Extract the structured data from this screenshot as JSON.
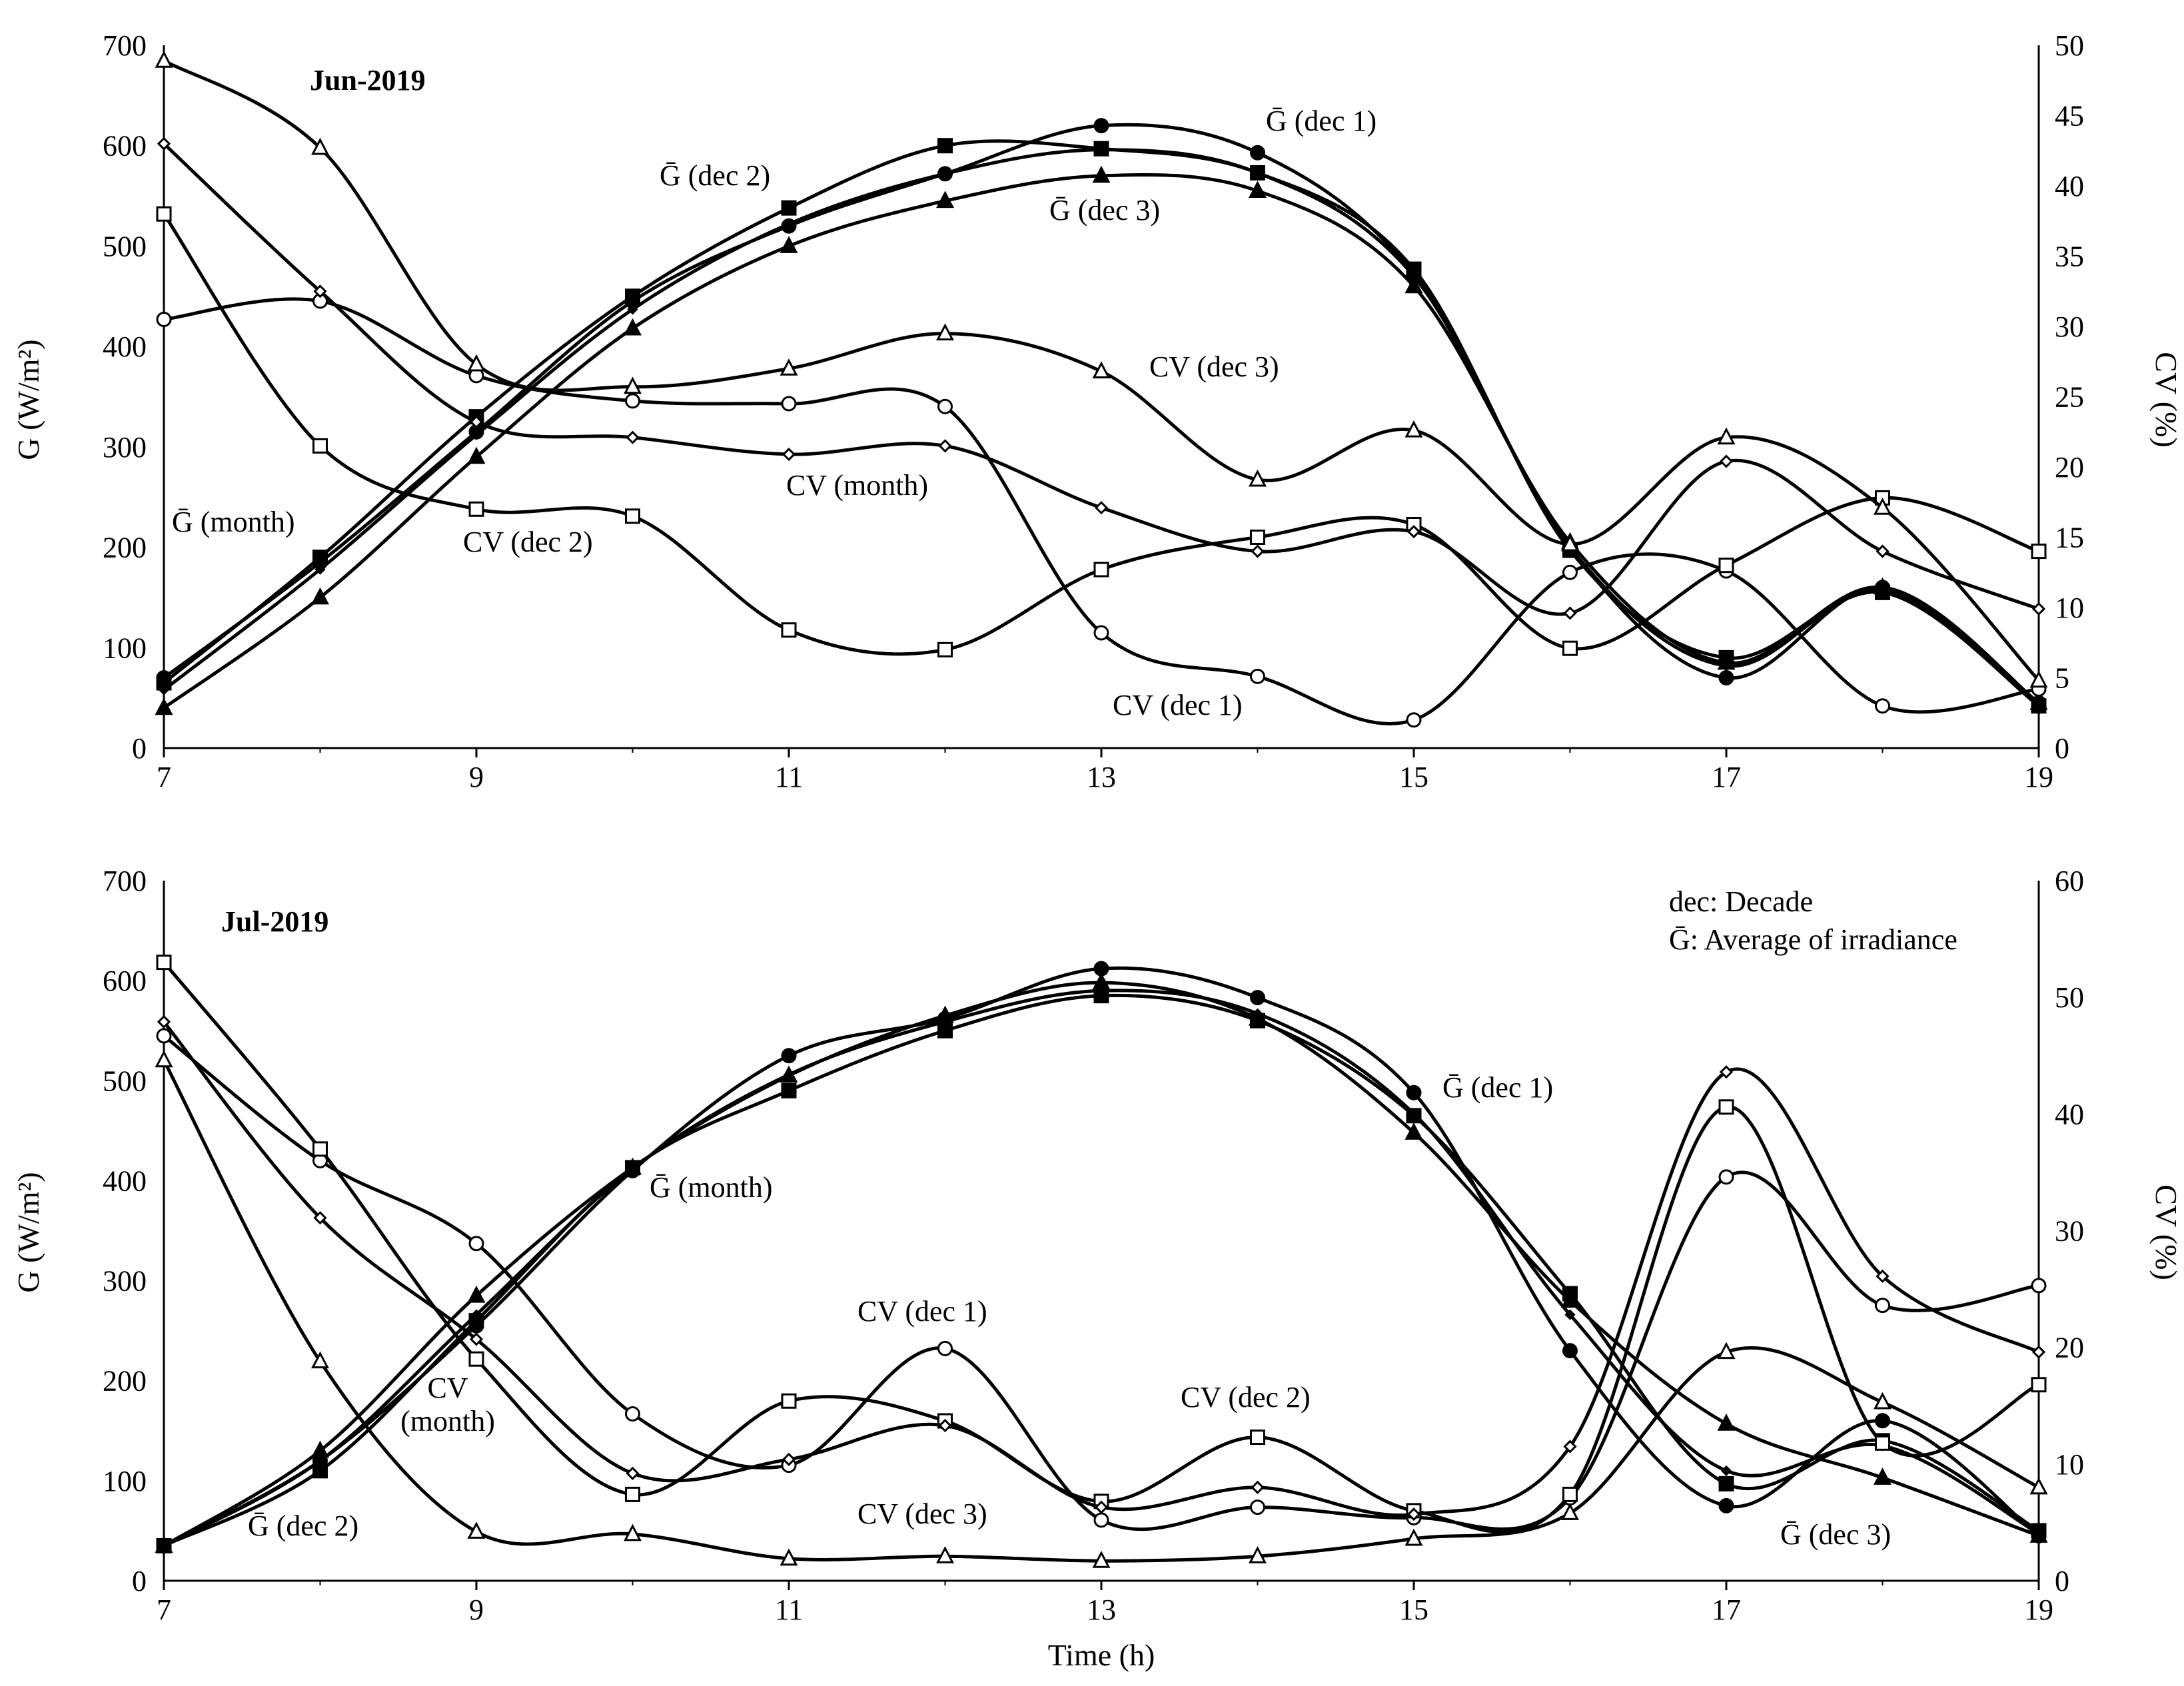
{
  "chart_data": [
    {
      "type": "line",
      "title": "Jun-2019",
      "xlabel": "",
      "ylabel": "G (W/m²)",
      "y2label": "CV (%)",
      "x": [
        7,
        8,
        9,
        10,
        11,
        12,
        13,
        14,
        15,
        16,
        17,
        18,
        19
      ],
      "xticks": [
        7,
        9,
        11,
        13,
        15,
        17,
        19
      ],
      "xlim": [
        7,
        19
      ],
      "ylim": [
        0,
        700
      ],
      "yticks": [
        0,
        100,
        200,
        300,
        400,
        500,
        600,
        700
      ],
      "y2lim": [
        0,
        50
      ],
      "y2ticks": [
        0,
        5,
        10,
        15,
        20,
        25,
        30,
        35,
        40,
        45,
        50
      ],
      "grid": false,
      "series": [
        {
          "name": "Ḡ (dec 1)",
          "axis": "left",
          "marker": "circle-filled",
          "values": [
            70,
            185,
            315,
            445,
            520,
            572,
            620,
            593,
            472,
            200,
            70,
            160,
            45
          ]
        },
        {
          "name": "Ḡ (dec 2)",
          "axis": "left",
          "marker": "square-filled",
          "values": [
            65,
            190,
            330,
            450,
            538,
            600,
            597,
            573,
            477,
            197,
            90,
            155,
            42
          ]
        },
        {
          "name": "Ḡ (dec 3)",
          "axis": "left",
          "marker": "triangle-filled",
          "values": [
            40,
            150,
            290,
            418,
            500,
            545,
            570,
            555,
            460,
            205,
            85,
            160,
            45
          ]
        },
        {
          "name": "Ḡ (month)",
          "axis": "left",
          "marker": "diamond-filled",
          "values": [
            58,
            178,
            312,
            437,
            522,
            572,
            596,
            573,
            470,
            200,
            82,
            158,
            44
          ]
        },
        {
          "name": "CV (dec 1)",
          "axis": "right",
          "marker": "circle-open",
          "values": [
            30.5,
            31.8,
            26.5,
            24.7,
            24.5,
            24.3,
            8.2,
            5.1,
            2.0,
            12.5,
            12.6,
            3.0,
            4.2
          ]
        },
        {
          "name": "CV (dec 2)",
          "axis": "right",
          "marker": "square-open",
          "values": [
            38.0,
            21.5,
            17.0,
            16.5,
            8.4,
            7.0,
            12.7,
            15.0,
            15.9,
            7.1,
            13.0,
            17.8,
            14.0
          ]
        },
        {
          "name": "CV (dec 3)",
          "axis": "right",
          "marker": "triangle-open",
          "values": [
            48.9,
            42.7,
            27.3,
            25.7,
            27.0,
            29.5,
            26.8,
            19.1,
            22.6,
            14.5,
            22.1,
            17.1,
            4.8
          ]
        },
        {
          "name": "CV (month)",
          "axis": "right",
          "marker": "diamond-open",
          "values": [
            43.0,
            32.5,
            23.2,
            22.1,
            20.9,
            21.5,
            17.1,
            14.0,
            15.4,
            9.6,
            20.4,
            14.0,
            9.9
          ]
        }
      ]
    },
    {
      "type": "line",
      "title": "Jul-2019",
      "xlabel": "Time (h)",
      "ylabel": "G (W/m²)",
      "y2label": "CV (%)",
      "x": [
        7,
        8,
        9,
        10,
        11,
        12,
        13,
        14,
        15,
        16,
        17,
        18,
        19
      ],
      "xticks": [
        7,
        9,
        11,
        13,
        15,
        17,
        19
      ],
      "xlim": [
        7,
        19
      ],
      "ylim": [
        0,
        700
      ],
      "yticks": [
        0,
        100,
        200,
        300,
        400,
        500,
        600,
        700
      ],
      "y2lim": [
        0,
        60
      ],
      "y2ticks": [
        0,
        10,
        20,
        30,
        40,
        50,
        60
      ],
      "grid": false,
      "series": [
        {
          "name": "Ḡ (dec 1)",
          "axis": "left",
          "marker": "circle-filled",
          "values": [
            35,
            120,
            255,
            410,
            525,
            562,
            612,
            583,
            488,
            230,
            75,
            160,
            45
          ]
        },
        {
          "name": "Ḡ (dec 2)",
          "axis": "left",
          "marker": "square-filled",
          "values": [
            35,
            110,
            260,
            413,
            490,
            550,
            585,
            560,
            465,
            287,
            97,
            140,
            50
          ]
        },
        {
          "name": "Ḡ (dec 3)",
          "axis": "left",
          "marker": "triangle-filled",
          "values": [
            35,
            130,
            285,
            413,
            505,
            565,
            598,
            562,
            448,
            280,
            157,
            103,
            45
          ]
        },
        {
          "name": "Ḡ (month)",
          "axis": "left",
          "marker": "diamond-filled",
          "values": [
            35,
            120,
            266,
            412,
            506,
            559,
            590,
            567,
            467,
            266,
            110,
            135,
            47
          ]
        },
        {
          "name": "CV (dec 1)",
          "axis": "right",
          "marker": "circle-open",
          "values": [
            46.7,
            36.0,
            28.9,
            14.3,
            9.9,
            19.9,
            5.2,
            6.3,
            5.4,
            7.1,
            34.6,
            23.6,
            25.3
          ]
        },
        {
          "name": "CV (dec 2)",
          "axis": "right",
          "marker": "square-open",
          "values": [
            53.0,
            37.0,
            19.0,
            7.4,
            15.4,
            13.7,
            6.8,
            12.3,
            6.0,
            7.4,
            40.6,
            11.8,
            16.8
          ]
        },
        {
          "name": "CV (dec 3)",
          "axis": "right",
          "marker": "triangle-open",
          "values": [
            44.6,
            18.8,
            4.2,
            4.0,
            1.9,
            2.1,
            1.7,
            2.1,
            3.6,
            5.8,
            19.6,
            15.3,
            8.0
          ]
        },
        {
          "name": "CV (month)",
          "axis": "right",
          "marker": "diamond-open",
          "values": [
            47.9,
            31.1,
            20.7,
            9.2,
            10.4,
            13.3,
            6.3,
            8.0,
            5.7,
            11.5,
            43.6,
            26.1,
            19.6
          ]
        }
      ]
    }
  ],
  "annotations": {
    "jun": {
      "g_dec1": "Ḡ (dec 1)",
      "g_dec2": "Ḡ (dec 2)",
      "g_dec3": "Ḡ (dec 3)",
      "g_month": "Ḡ (month)",
      "cv_dec1": "CV (dec 1)",
      "cv_dec2": "CV (dec 2)",
      "cv_dec3": "CV (dec 3)",
      "cv_month": "CV (month)"
    },
    "jul": {
      "g_dec1": "Ḡ (dec 1)",
      "g_dec2": "Ḡ (dec 2)",
      "g_dec3": "Ḡ (dec 3)",
      "g_month": "Ḡ (month)",
      "cv_dec1": "CV (dec 1)",
      "cv_dec2": "CV (dec 2)",
      "cv_dec3": "CV (dec 3)",
      "cv_month_1": "CV",
      "cv_month_2": "(month)"
    }
  },
  "legend": {
    "line1": "dec: Decade",
    "line2": "Ḡ: Average of irradiance"
  }
}
